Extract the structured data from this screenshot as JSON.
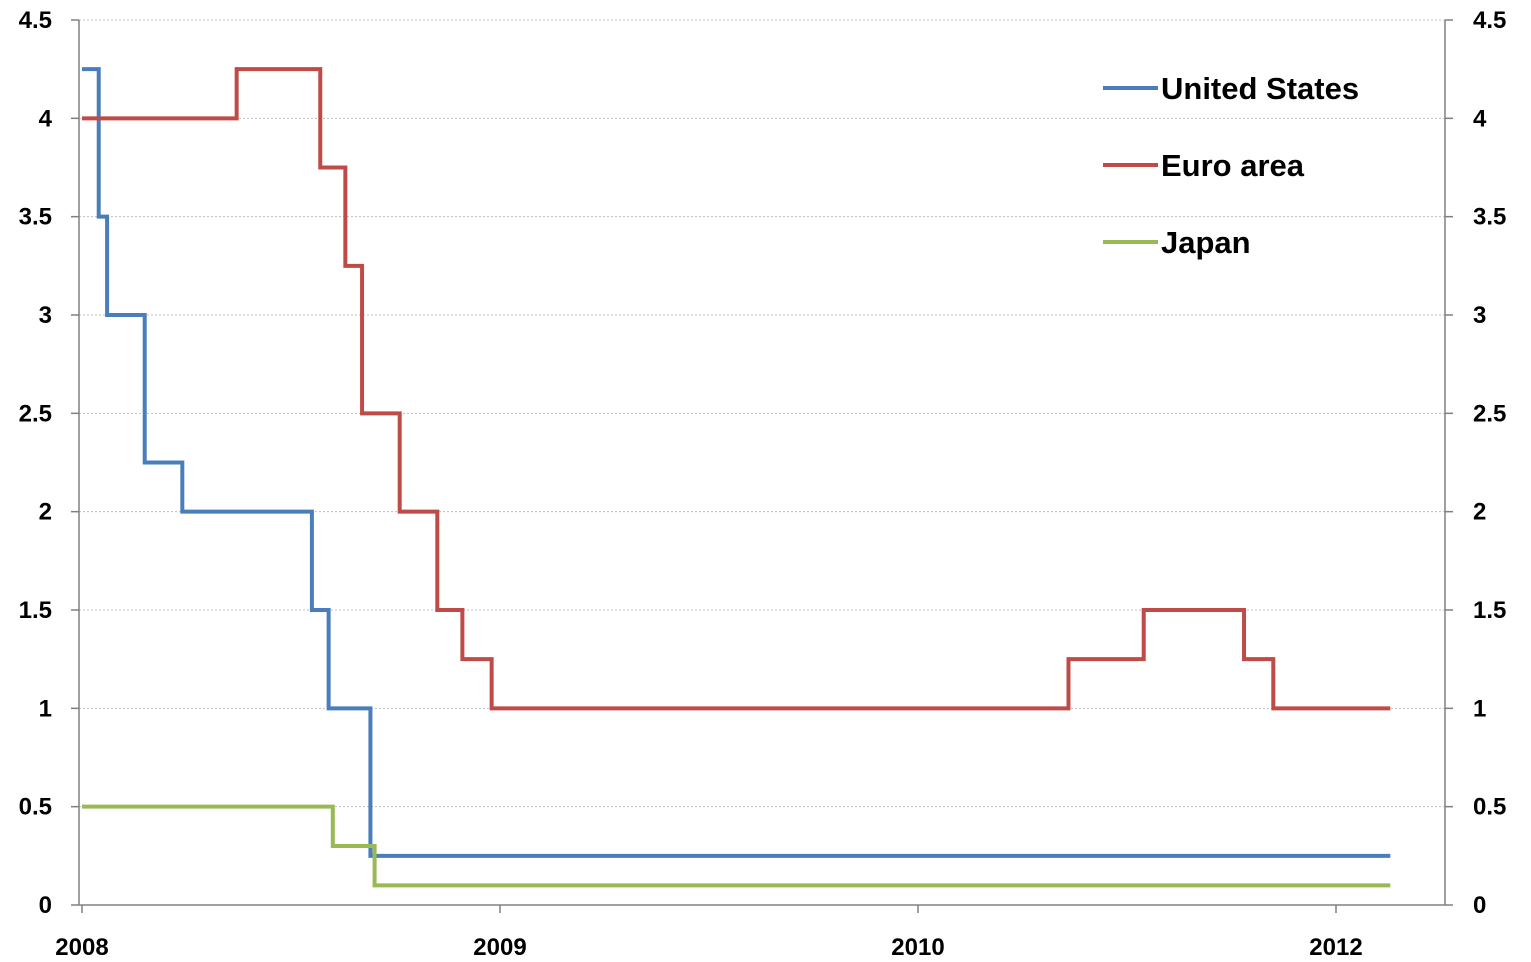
{
  "chart_data": {
    "type": "line",
    "step": true,
    "title": "",
    "xlabel": "",
    "ylabel": "",
    "ylim": [
      0,
      4.5
    ],
    "y_ticks": [
      "0",
      "0.5",
      "1",
      "1.5",
      "2",
      "2.5",
      "3",
      "3.5",
      "4",
      "4.5"
    ],
    "y_tick_values": [
      0,
      0.5,
      1,
      1.5,
      2,
      2.5,
      3,
      3.5,
      4,
      4.5
    ],
    "secondary_y_axis": true,
    "x_ticks": [
      "2008",
      "2009",
      "2010",
      "2012"
    ],
    "grid": "horizontal dotted",
    "legend_position": "top-right",
    "series": [
      {
        "name": "United States",
        "color": "#4a7ebb",
        "points": [
          [
            0,
            4.25
          ],
          [
            0.04,
            3.5
          ],
          [
            0.06,
            3.0
          ],
          [
            0.15,
            2.25
          ],
          [
            0.24,
            2.0
          ],
          [
            0.55,
            1.5
          ],
          [
            0.59,
            1.0
          ],
          [
            0.69,
            0.25
          ],
          [
            3.13,
            0.25
          ]
        ]
      },
      {
        "name": "Euro area",
        "color": "#be4b48",
        "points": [
          [
            0,
            4.0
          ],
          [
            0.37,
            4.25
          ],
          [
            0.57,
            3.75
          ],
          [
            0.63,
            3.25
          ],
          [
            0.67,
            2.5
          ],
          [
            0.76,
            2.0
          ],
          [
            0.85,
            1.5
          ],
          [
            0.91,
            1.25
          ],
          [
            0.98,
            1.0
          ],
          [
            2.36,
            1.25
          ],
          [
            2.54,
            1.5
          ],
          [
            2.78,
            1.25
          ],
          [
            2.85,
            1.0
          ],
          [
            3.13,
            1.0
          ]
        ]
      },
      {
        "name": "Japan",
        "color": "#98b954",
        "points": [
          [
            0,
            0.5
          ],
          [
            0.6,
            0.3
          ],
          [
            0.7,
            0.1
          ],
          [
            3.13,
            0.1
          ]
        ]
      }
    ]
  }
}
